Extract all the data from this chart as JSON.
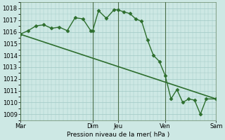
{
  "bg_color": "#cde8e4",
  "grid_color": "#a0c8c4",
  "line_color": "#2d6e2d",
  "ylabel": "Pression niveau de la mer( hPa )",
  "ylim": [
    1008.5,
    1018.5
  ],
  "yticks": [
    1009,
    1010,
    1011,
    1012,
    1013,
    1014,
    1015,
    1016,
    1017,
    1018
  ],
  "xlim": [
    0,
    100
  ],
  "vline_positions": [
    0,
    37,
    50,
    74,
    100
  ],
  "day_x": [
    0,
    37,
    50,
    74,
    100
  ],
  "day_lbl": [
    "Mar",
    "Dim",
    "Jeu",
    "Ven",
    "Sam"
  ],
  "trend_x": [
    0,
    100
  ],
  "trend_y": [
    1015.8,
    1010.3
  ],
  "forecast_x": [
    0,
    4,
    8,
    12,
    16,
    20,
    24,
    28,
    32,
    36,
    37,
    40,
    44,
    48,
    50,
    53,
    56,
    59,
    62,
    65,
    68,
    71,
    74,
    77,
    80,
    83,
    86,
    89,
    92,
    95,
    100
  ],
  "forecast_y": [
    1015.8,
    1016.1,
    1016.5,
    1016.6,
    1016.3,
    1016.4,
    1016.1,
    1017.2,
    1017.1,
    1016.1,
    1016.1,
    1017.8,
    1017.15,
    1017.9,
    1017.85,
    1017.7,
    1017.55,
    1017.1,
    1016.9,
    1015.3,
    1014.0,
    1013.5,
    1012.3,
    1010.3,
    1011.1,
    1010.0,
    1010.3,
    1010.2,
    1009.0,
    1010.3,
    1010.3
  ]
}
